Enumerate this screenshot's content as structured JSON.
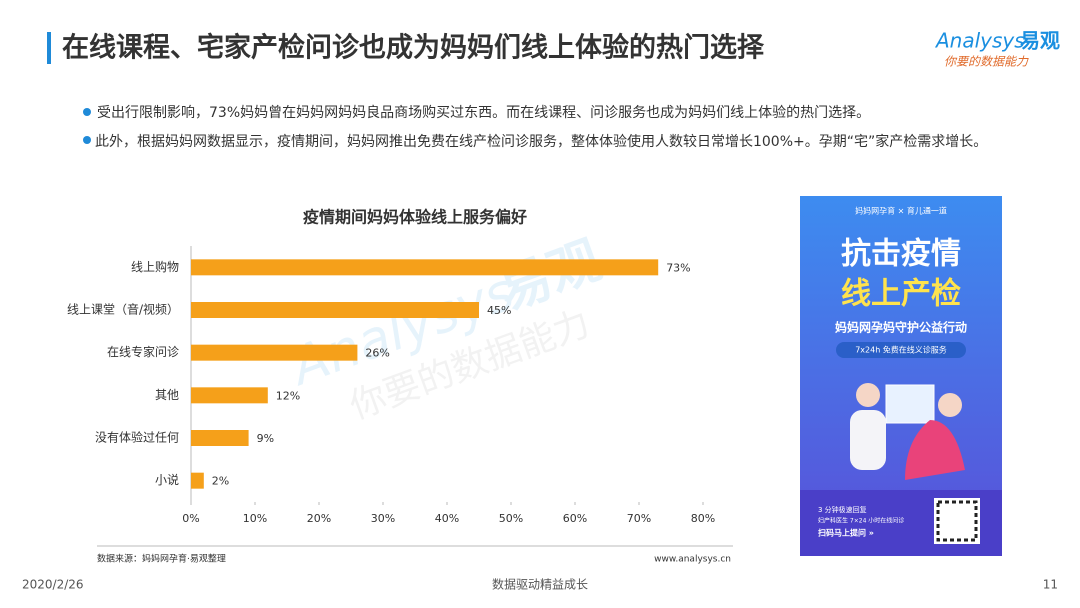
{
  "header": {
    "title": "在线课程、宅家产检问诊也成为妈妈们线上体验的热门选择"
  },
  "logo": {
    "brand": "Analysys",
    "brand_cn": "易观",
    "tagline": "你要的数据能力"
  },
  "bullets": [
    "受出行限制影响，73%妈妈曾在妈妈网妈妈良品商场购买过东西。而在线课程、问诊服务也成为妈妈们线上体验的热门选择。",
    "此外，根据妈妈网数据显示，疫情期间，妈妈网推出免费在线产检问诊服务，整体体验使用人数较日常增长100%+。孕期“宅”家产检需求增长。"
  ],
  "chart_data": {
    "type": "hbar",
    "title": "疫情期间妈妈体验线上服务偏好",
    "categories": [
      "线上购物",
      "线上课堂（音/视频）",
      "在线专家问诊",
      "其他",
      "没有体验过任何",
      "小说"
    ],
    "values": [
      73,
      45,
      26,
      12,
      9,
      2
    ],
    "value_labels": [
      "73%",
      "45%",
      "26%",
      "12%",
      "9%",
      "2%"
    ],
    "color": "#f5a01a",
    "xlim": [
      0,
      80
    ],
    "xticks": [
      {
        "value": 0,
        "label": "0%"
      },
      {
        "value": 10,
        "label": "10%"
      },
      {
        "value": 20,
        "label": "20%"
      },
      {
        "value": 30,
        "label": "30%"
      },
      {
        "value": 40,
        "label": "40%"
      },
      {
        "value": 50,
        "label": "50%"
      },
      {
        "value": 60,
        "label": "60%"
      },
      {
        "value": 70,
        "label": "70%"
      },
      {
        "value": 80,
        "label": "80%"
      }
    ],
    "source": "数据来源：妈妈网孕育·易观整理",
    "url": "www.analysys.cn"
  },
  "poster": {
    "brands": "妈妈网孕育 × 育儿通一道",
    "headline1": "抗击疫情",
    "headline2": "线上产检",
    "campaign": "妈妈网孕妈守护公益行动",
    "service": "7x24h 免费在线义诊服务",
    "note1": "3 分钟极速回复",
    "note2": "妇产科医生 7×24 小时在线问诊",
    "cta": "扫码马上提问 »"
  },
  "footer": {
    "date": "2020/2/26",
    "slogan": "数据驱动精益成长",
    "page": "11"
  }
}
